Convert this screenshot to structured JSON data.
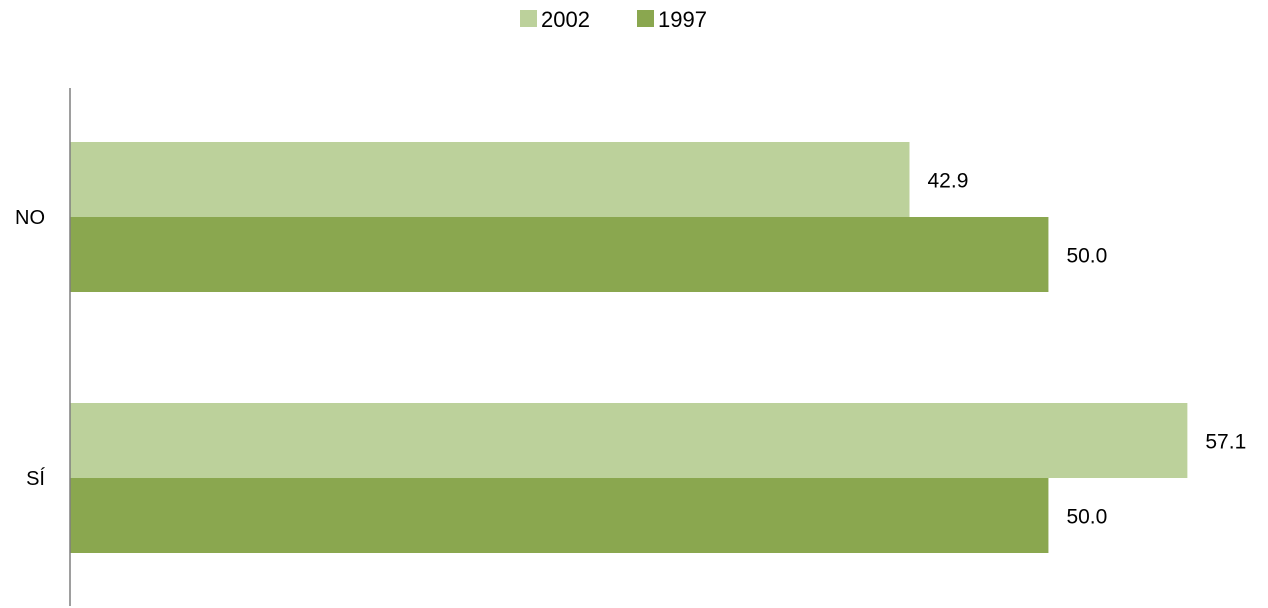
{
  "chart_data": {
    "type": "bar",
    "orientation": "horizontal",
    "categories": [
      "NO",
      "SÍ"
    ],
    "series": [
      {
        "name": "2002",
        "values": [
          42.9,
          57.1
        ],
        "color": "#bcd19b",
        "labels": [
          "42.9",
          "57.1"
        ]
      },
      {
        "name": "1997",
        "values": [
          50.0,
          50.0
        ],
        "color": "#8aa74f",
        "labels": [
          "50.0",
          "50.0"
        ]
      }
    ],
    "legend_position": "top",
    "grid": false,
    "xlim": [
      0,
      60
    ]
  },
  "colors": {
    "axis": "#7f7f7f",
    "text": "#000000"
  }
}
